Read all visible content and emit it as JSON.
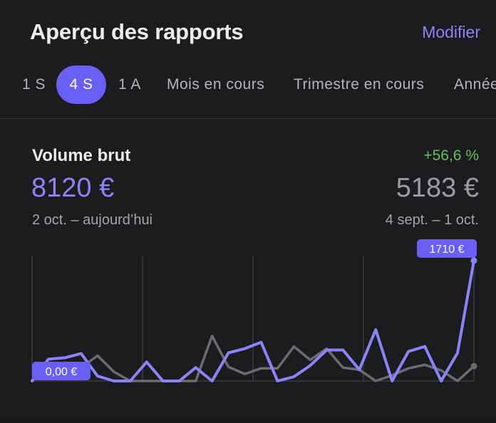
{
  "header": {
    "title": "Aperçu des rapports",
    "edit_label": "Modifier"
  },
  "tabs": [
    {
      "label": "1 S",
      "active": false
    },
    {
      "label": "4 S",
      "active": true
    },
    {
      "label": "1 A",
      "active": false
    },
    {
      "label": "Mois en cours",
      "active": false
    },
    {
      "label": "Trimestre en cours",
      "active": false
    },
    {
      "label": "Année",
      "active": false
    }
  ],
  "metric": {
    "title": "Volume brut",
    "change": "+56,6 %",
    "current_value": "8120 €",
    "previous_value": "5183 €",
    "current_range": "2 oct. – aujourd’hui",
    "previous_range": "4 sept. – 1 oct."
  },
  "colors": {
    "accent": "#8b84f7",
    "accent_strong": "#6a5ff5",
    "previous_series": "#6b6b72",
    "positive": "#5fbf61",
    "background": "#1c1c1f"
  },
  "chart_data": {
    "type": "line",
    "grid": true,
    "ylim": [
      0,
      1710
    ],
    "start_label": "0,00 €",
    "max_label": "1710 €",
    "series": [
      {
        "values": [
          0,
          310,
          330,
          390,
          70,
          0,
          0,
          270,
          0,
          0,
          190,
          0,
          400,
          460,
          550,
          0,
          60,
          220,
          440,
          440,
          160,
          730,
          0,
          420,
          490,
          0,
          400,
          1710
        ]
      },
      {
        "values": [
          0,
          210,
          260,
          190,
          360,
          130,
          0,
          0,
          0,
          0,
          0,
          640,
          200,
          100,
          180,
          180,
          490,
          300,
          460,
          190,
          160,
          0,
          80,
          180,
          230,
          150,
          0,
          210
        ]
      }
    ]
  }
}
